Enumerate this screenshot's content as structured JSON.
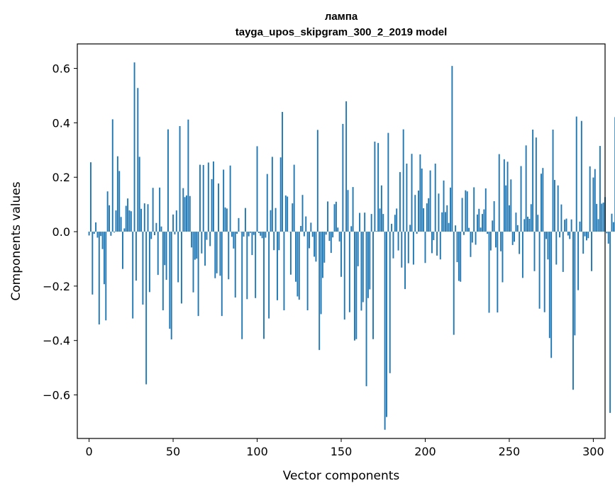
{
  "chart_data": {
    "type": "bar",
    "title": "лампа",
    "subtitle": "tayga_upos_skipgram_300_2_2019 model",
    "xlabel": "Vector components",
    "ylabel": "Components values",
    "xlim": [
      -7,
      307
    ],
    "ylim": [
      -0.76,
      0.69
    ],
    "xticks": [
      {
        "value": 0,
        "label": "0"
      },
      {
        "value": 50,
        "label": "50"
      },
      {
        "value": 100,
        "label": "100"
      },
      {
        "value": 150,
        "label": "150"
      },
      {
        "value": 200,
        "label": "200"
      },
      {
        "value": 250,
        "label": "250"
      },
      {
        "value": 300,
        "label": "300"
      }
    ],
    "yticks": [
      {
        "value": -0.6,
        "label": "−0.6"
      },
      {
        "value": -0.4,
        "label": "−0.4"
      },
      {
        "value": -0.2,
        "label": "−0.2"
      },
      {
        "value": 0.0,
        "label": "0.0"
      },
      {
        "value": 0.2,
        "label": "0.2"
      },
      {
        "value": 0.4,
        "label": "0.4"
      },
      {
        "value": 0.6,
        "label": "0.6"
      }
    ],
    "grid": false,
    "bar_color": "#1f77b4",
    "values": [
      -0.014,
      0.255,
      -0.231,
      -0.008,
      0.034,
      -0.022,
      -0.341,
      -0.016,
      -0.064,
      -0.193,
      -0.326,
      0.148,
      0.097,
      -0.015,
      0.413,
      -0.003,
      0.078,
      0.277,
      0.223,
      0.054,
      -0.137,
      0.012,
      0.095,
      0.122,
      0.078,
      0.075,
      -0.319,
      0.622,
      -0.18,
      0.528,
      0.275,
      0.084,
      -0.268,
      0.104,
      -0.561,
      0.101,
      -0.222,
      -0.027,
      0.161,
      -0.013,
      0.032,
      -0.159,
      0.162,
      0.019,
      -0.289,
      -0.123,
      -0.177,
      0.376,
      -0.357,
      -0.396,
      0.063,
      -0.01,
      0.078,
      -0.186,
      0.388,
      -0.264,
      0.16,
      0.127,
      0.133,
      0.412,
      0.131,
      -0.058,
      -0.223,
      -0.103,
      -0.099,
      -0.31,
      0.246,
      -0.08,
      0.245,
      -0.125,
      -0.03,
      0.254,
      -0.053,
      0.193,
      0.258,
      -0.171,
      -0.153,
      0.177,
      -0.162,
      -0.31,
      0.228,
      0.089,
      0.085,
      -0.175,
      0.243,
      -0.019,
      -0.062,
      -0.242,
      -0.008,
      0.05,
      0.0,
      -0.395,
      -0.018,
      0.087,
      -0.248,
      -0.017,
      -0.004,
      -0.086,
      -0.012,
      -0.244,
      0.314,
      -0.005,
      -0.015,
      -0.024,
      -0.394,
      -0.022,
      0.212,
      -0.319,
      0.079,
      0.275,
      -0.068,
      0.087,
      -0.252,
      -0.068,
      0.273,
      0.44,
      -0.289,
      0.133,
      0.129,
      0.0,
      -0.158,
      0.104,
      0.246,
      -0.184,
      -0.238,
      -0.25,
      0.021,
      0.135,
      -0.017,
      0.056,
      -0.289,
      -0.061,
      0.033,
      -0.019,
      -0.092,
      -0.11,
      0.374,
      -0.435,
      -0.303,
      -0.17,
      -0.114,
      -0.011,
      0.111,
      -0.034,
      -0.078,
      -0.021,
      0.101,
      0.11,
      0.015,
      -0.036,
      -0.166,
      0.396,
      -0.323,
      0.479,
      0.153,
      -0.296,
      0.02,
      0.164,
      -0.4,
      -0.395,
      -0.127,
      0.069,
      -0.29,
      -0.259,
      0.07,
      -0.568,
      -0.244,
      -0.212,
      0.065,
      -0.395,
      0.331,
      0.002,
      0.326,
      0.085,
      0.17,
      0.065,
      -0.728,
      -0.681,
      0.363,
      -0.52,
      0.029,
      -0.098,
      0.062,
      0.085,
      -0.069,
      0.219,
      -0.132,
      0.376,
      -0.211,
      0.25,
      -0.116,
      0.025,
      0.286,
      -0.121,
      0.135,
      -0.008,
      0.151,
      0.284,
      0.232,
      0.086,
      -0.115,
      0.104,
      0.123,
      0.225,
      -0.079,
      -0.031,
      0.25,
      -0.088,
      0.14,
      -0.102,
      0.071,
      0.188,
      0.072,
      0.097,
      0.032,
      0.162,
      0.609,
      -0.379,
      0.023,
      -0.112,
      -0.181,
      -0.184,
      0.124,
      -0.012,
      0.152,
      0.148,
      0.014,
      -0.093,
      -0.04,
      0.163,
      -0.048,
      0.063,
      0.084,
      0.015,
      0.065,
      0.082,
      0.159,
      -0.008,
      -0.298,
      -0.069,
      0.041,
      0.112,
      -0.058,
      -0.297,
      0.285,
      -0.072,
      -0.186,
      0.266,
      0.17,
      0.257,
      0.097,
      0.192,
      -0.049,
      -0.037,
      0.07,
      0.024,
      -0.082,
      0.241,
      -0.17,
      0.046,
      0.317,
      0.055,
      0.047,
      0.101,
      0.375,
      -0.145,
      0.346,
      0.062,
      -0.283,
      0.213,
      0.234,
      -0.296,
      -0.027,
      -0.102,
      -0.391,
      -0.464,
      0.375,
      0.19,
      -0.121,
      0.17,
      -0.021,
      0.1,
      -0.148,
      0.044,
      0.048,
      -0.014,
      -0.027,
      0.045,
      -0.581,
      -0.381,
      0.423,
      -0.215,
      0.037,
      0.407,
      -0.081,
      -0.017,
      -0.032,
      -0.024,
      0.24,
      -0.145,
      0.199,
      0.23,
      0.102,
      0.046,
      0.315,
      0.103,
      0.107,
      0.127,
      -0.006,
      -0.044,
      -0.666,
      0.066,
      0.035,
      0.421,
      -0.136
    ]
  }
}
